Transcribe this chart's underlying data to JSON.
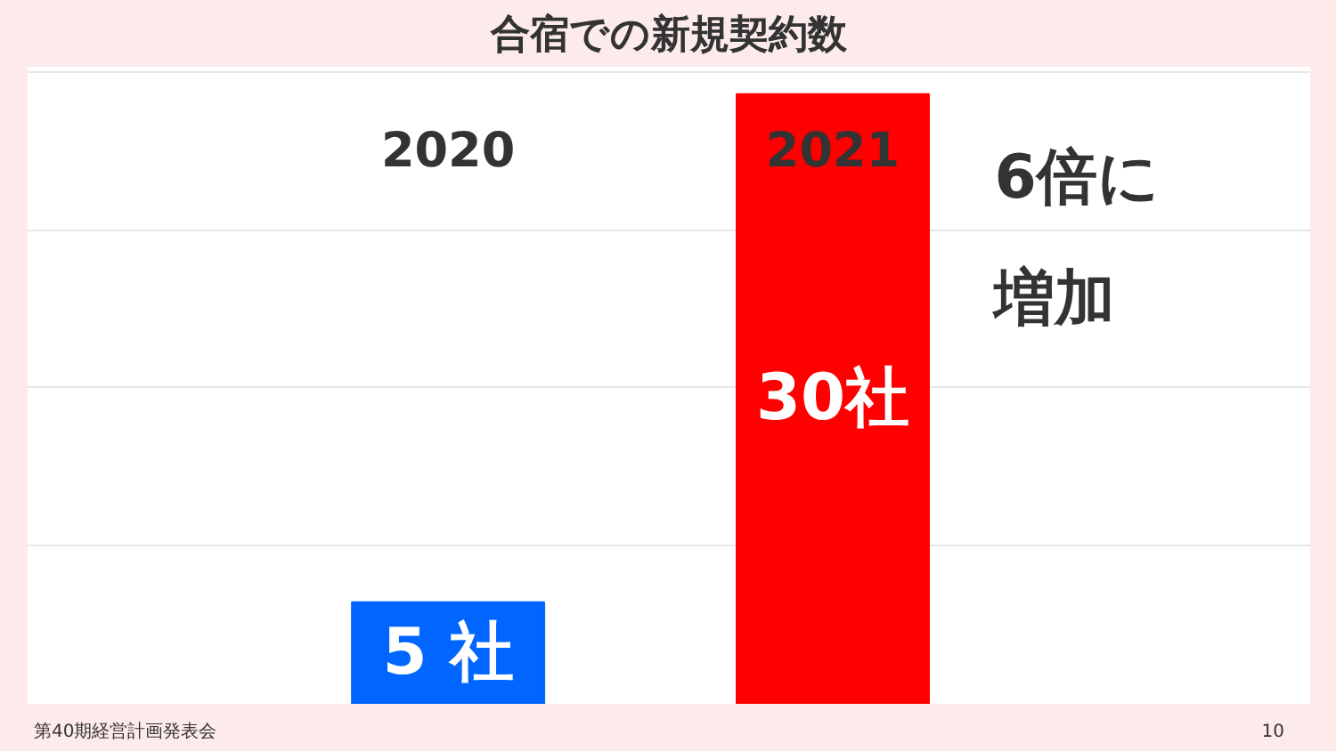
{
  "chart_data": {
    "type": "bar",
    "title": "合宿での新規契約数",
    "categories": [
      "2020",
      "2021"
    ],
    "values": [
      5,
      30
    ],
    "colors": [
      "#0066ff",
      "#ff0000"
    ],
    "value_labels": [
      "5 社",
      "30社"
    ],
    "grid": "y",
    "tick_labels": "x",
    "annotations": [
      "6倍に増加",
      "第40期経営計画発表会",
      "10"
    ]
  }
}
